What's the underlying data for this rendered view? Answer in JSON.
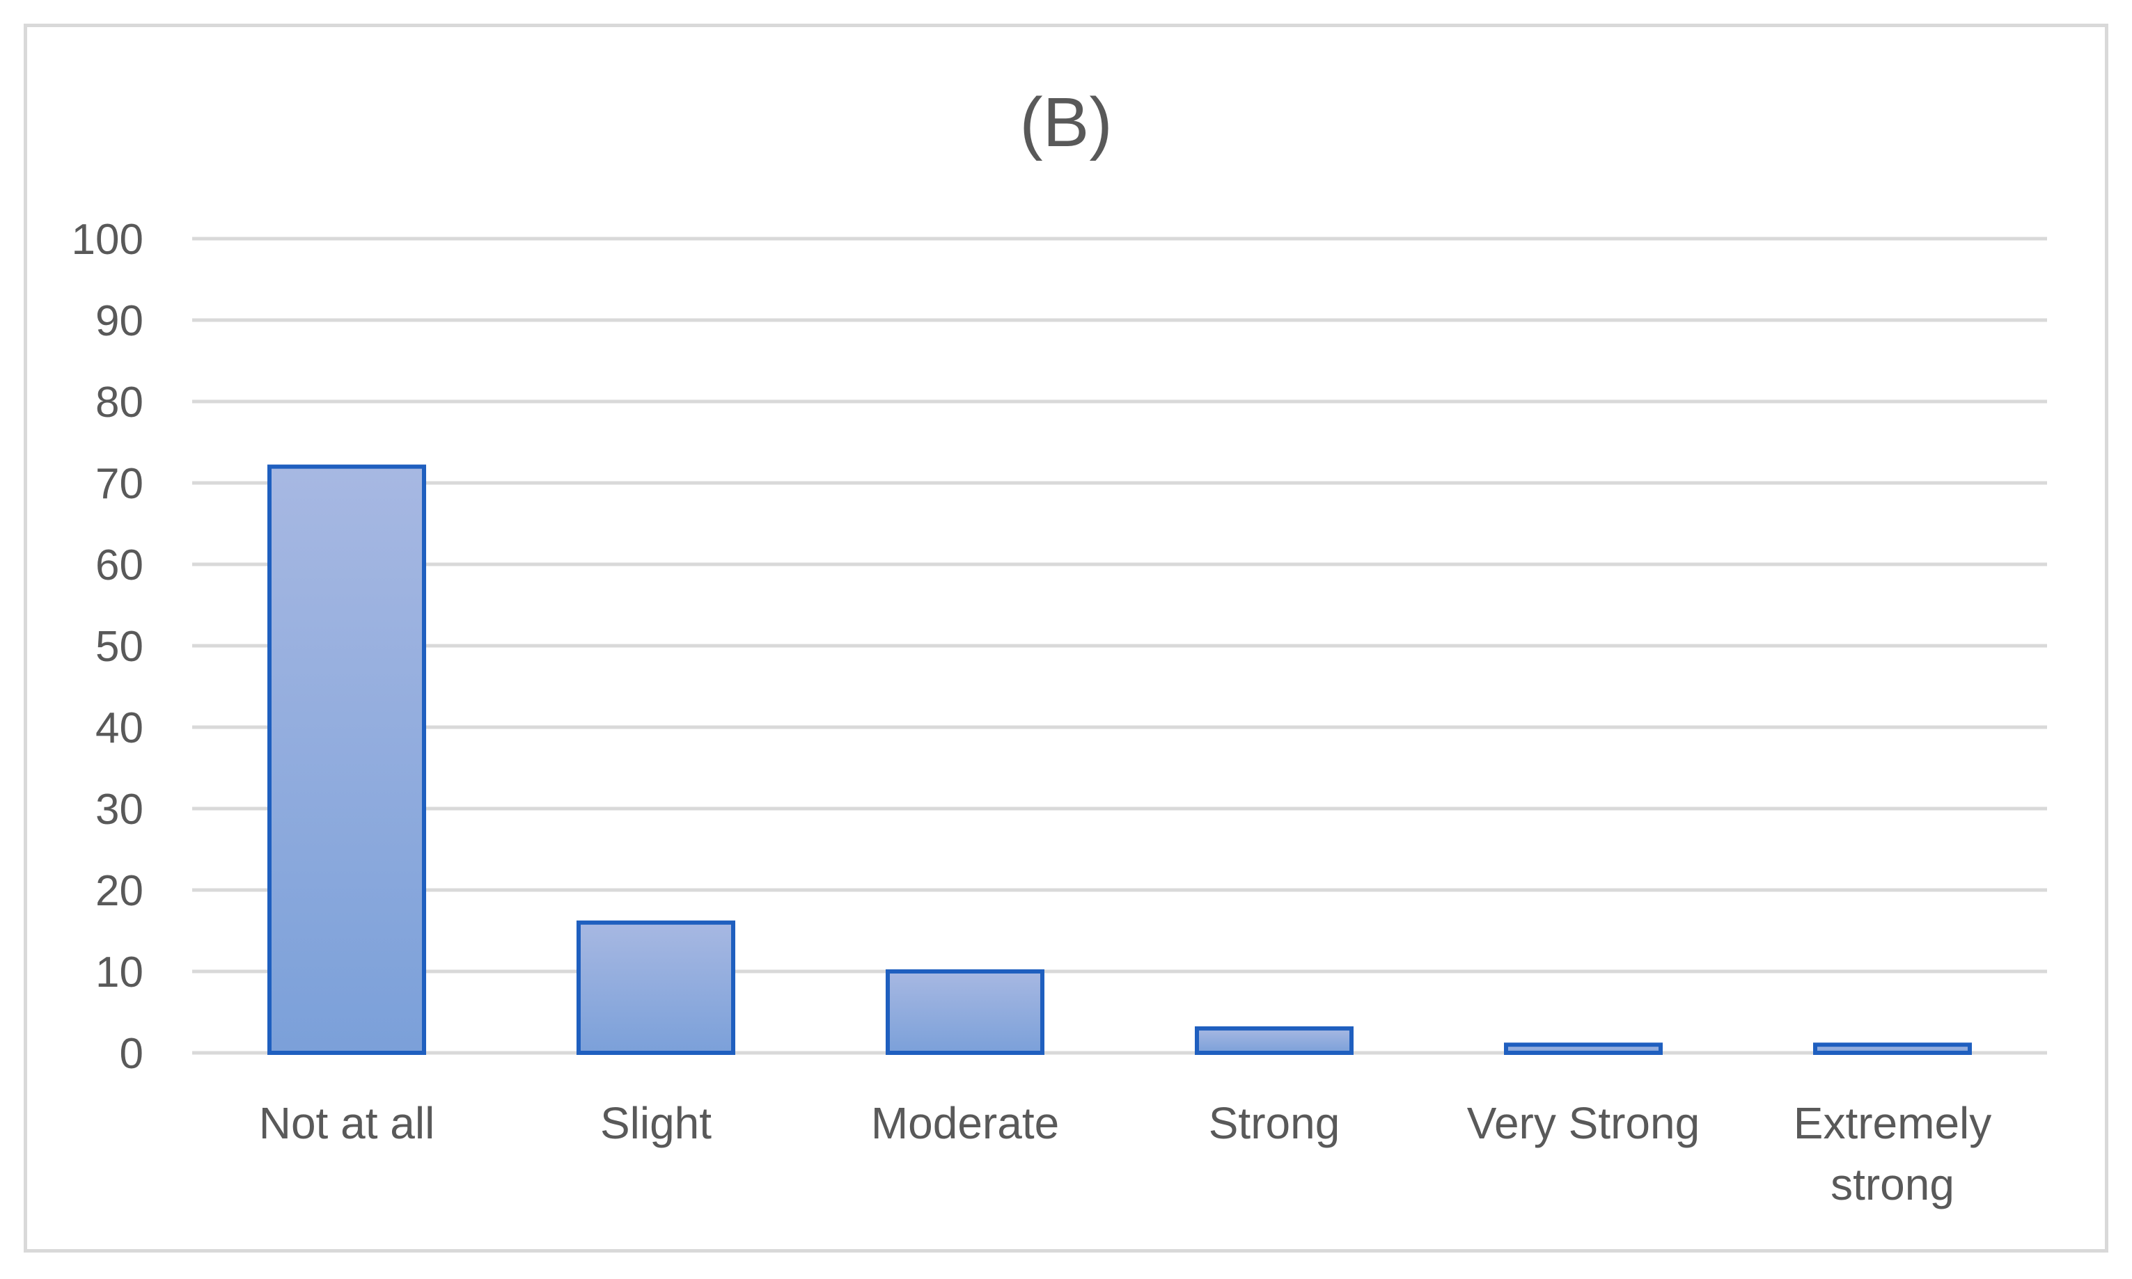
{
  "chart_data": {
    "type": "bar",
    "title": "(B)",
    "xlabel": "",
    "ylabel": "",
    "categories": [
      [
        "Not at all"
      ],
      [
        "Slight"
      ],
      [
        "Moderate"
      ],
      [
        "Strong"
      ],
      [
        "Very Strong"
      ],
      [
        "Extremely",
        "strong"
      ]
    ],
    "values": [
      72,
      16,
      10,
      3,
      1,
      1
    ],
    "ylim": [
      0,
      100
    ],
    "yticks": [
      0,
      10,
      20,
      30,
      40,
      50,
      60,
      70,
      80,
      90,
      100
    ],
    "grid": true,
    "legend": "none",
    "colors": {
      "bar_fill_top": "#a7b8e2",
      "bar_fill_bottom": "#7ba0d9",
      "bar_stroke": "#1f5fbf",
      "grid": "#d9d9d9",
      "text": "#595959"
    }
  }
}
